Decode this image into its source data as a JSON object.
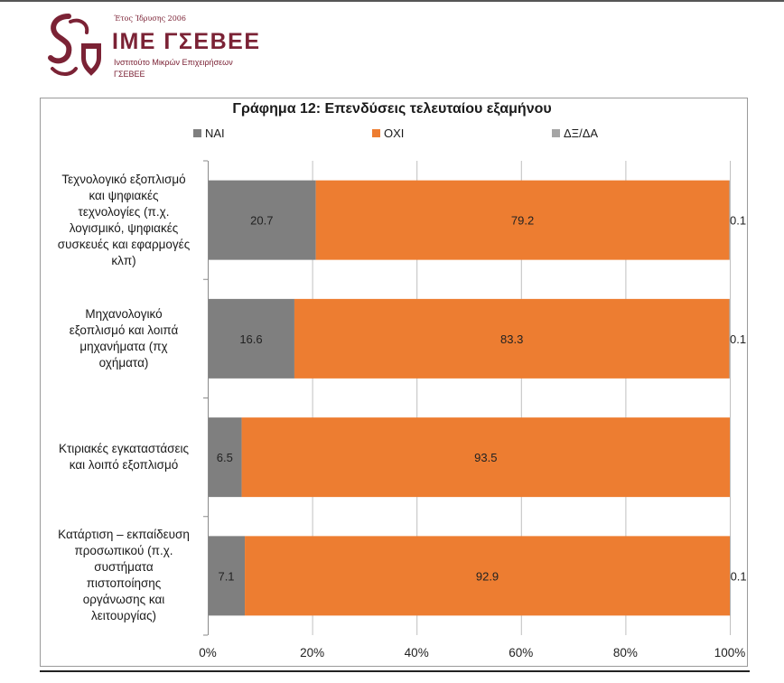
{
  "logo": {
    "founded": "Έτος Ίδρυσης 2006",
    "name": "ΙΜΕ ΓΣΕΒΕΕ",
    "subtitle_line1": "Ινστιτούτο Μικρών Επιχειρήσεων",
    "subtitle_line2": "ΓΣΕΒΕΕ"
  },
  "colors": {
    "brand": "#7b2235",
    "yes": "#7f7f7f",
    "no": "#ed7d31",
    "dk": "#a5a5a5"
  },
  "chart_data": {
    "type": "bar",
    "orientation": "horizontal-stacked-100",
    "title": "Γράφημα 12: Επενδύσεις τελευταίου εξαμήνου",
    "categories": [
      "Τεχνολογικό εξοπλισμό και ψηφιακές τεχνολογίες (π.χ. λογισμικό, ψηφιακές συσκευές και εφαρμογές κλπ)",
      "Μηχανολογικό εξοπλισμό και λοιπά μηχανήματα (πχ οχήματα)",
      "Κτιριακές εγκαταστάσεις και λοιπό εξοπλισμό",
      "Κατάρτιση – εκπαίδευση προσωπικού (π.χ. συστήματα πιστοποίησης οργάνωσης και λειτουργίας)"
    ],
    "category_lines": [
      [
        "Τεχνολογικό εξοπλισμό",
        "και ψηφιακές",
        "τεχνολογίες (π.χ.",
        "λογισμικό, ψηφιακές",
        "συσκευές και εφαρμογές",
        "κλπ)"
      ],
      [
        "Μηχανολογικό",
        "εξοπλισμό και λοιπά",
        "μηχανήματα (πχ",
        "οχήματα)"
      ],
      [
        "Κτιριακές εγκαταστάσεις",
        "και λοιπό εξοπλισμό"
      ],
      [
        "Κατάρτιση – εκπαίδευση",
        "προσωπικού (π.χ.",
        "συστήματα",
        "πιστοποίησης",
        "οργάνωσης και",
        "λειτουργίας)"
      ]
    ],
    "series": [
      {
        "name": "ΝΑΙ",
        "values": [
          20.7,
          16.6,
          6.5,
          7.1
        ],
        "labels": [
          "20.7",
          "16.6",
          "6.5",
          "7.1"
        ]
      },
      {
        "name": "ΟΧΙ",
        "values": [
          79.2,
          83.3,
          93.5,
          92.9
        ],
        "labels": [
          "79.2",
          "83.3",
          "93.5",
          "92.9"
        ]
      },
      {
        "name": "ΔΞ/ΔΑ",
        "values": [
          0.1,
          0.1,
          0.0,
          0.1
        ],
        "labels": [
          "0.1",
          "0.1",
          "",
          "0.1"
        ]
      }
    ],
    "xlim": [
      0,
      100
    ],
    "x_ticks": [
      "0%",
      "20%",
      "40%",
      "60%",
      "80%",
      "100%"
    ],
    "grid": true,
    "legend_position": "top"
  }
}
